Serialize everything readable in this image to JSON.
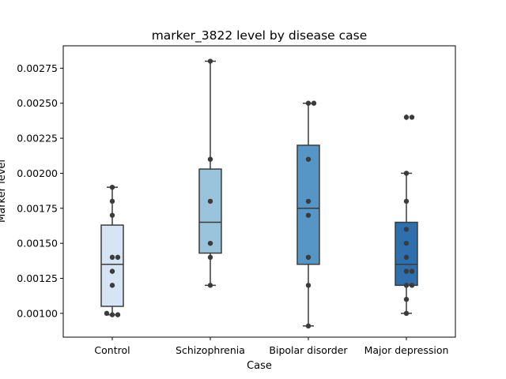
{
  "chart_data": {
    "type": "box",
    "title": "marker_3822 level by disease case",
    "xlabel": "Case",
    "ylabel": "Marker level",
    "ylim": [
      0.00083,
      0.00291
    ],
    "y_ticks": [
      0.001,
      0.00125,
      0.0015,
      0.00175,
      0.002,
      0.00225,
      0.0025,
      0.00275
    ],
    "y_tick_labels": [
      "0.00100",
      "0.00125",
      "0.00150",
      "0.00175",
      "0.00200",
      "0.00225",
      "0.00250",
      "0.00275"
    ],
    "grid": false,
    "categories": [
      "Control",
      "Schizophrenia",
      "Bipolar disorder",
      "Major depression"
    ],
    "box_colors": [
      "#d6e4f3",
      "#9ac3dc",
      "#5596c7",
      "#2e6fae"
    ],
    "point_color": "#3b3b3b",
    "boxes": [
      {
        "category": "Control",
        "q1": 0.00105,
        "median": 0.00135,
        "q3": 0.00163,
        "whisker_low": 0.00099,
        "whisker_high": 0.0019,
        "fliers": []
      },
      {
        "category": "Schizophrenia",
        "q1": 0.00143,
        "median": 0.00165,
        "q3": 0.00203,
        "whisker_low": 0.0012,
        "whisker_high": 0.0028,
        "fliers": []
      },
      {
        "category": "Bipolar disorder",
        "q1": 0.00135,
        "median": 0.00175,
        "q3": 0.0022,
        "whisker_low": 0.00091,
        "whisker_high": 0.0025,
        "fliers": []
      },
      {
        "category": "Major depression",
        "q1": 0.0012,
        "median": 0.00135,
        "q3": 0.00165,
        "whisker_low": 0.001,
        "whisker_high": 0.002,
        "fliers": [
          0.0024
        ]
      }
    ],
    "points": [
      {
        "category": "Control",
        "values": [
          0.0019,
          0.0018,
          0.0017,
          0.0014,
          0.0014,
          0.0013,
          0.0012,
          0.00099,
          0.00099,
          0.001
        ]
      },
      {
        "category": "Schizophrenia",
        "values": [
          0.0028,
          0.0021,
          0.0018,
          0.0015,
          0.0014,
          0.0012
        ]
      },
      {
        "category": "Bipolar disorder",
        "values": [
          0.0025,
          0.0025,
          0.0021,
          0.0018,
          0.0017,
          0.0014,
          0.0012,
          0.00091
        ]
      },
      {
        "category": "Major depression",
        "values": [
          0.0024,
          0.0024,
          0.002,
          0.0018,
          0.0016,
          0.0015,
          0.0014,
          0.0013,
          0.0013,
          0.0012,
          0.0012,
          0.0011,
          0.001
        ]
      }
    ]
  }
}
